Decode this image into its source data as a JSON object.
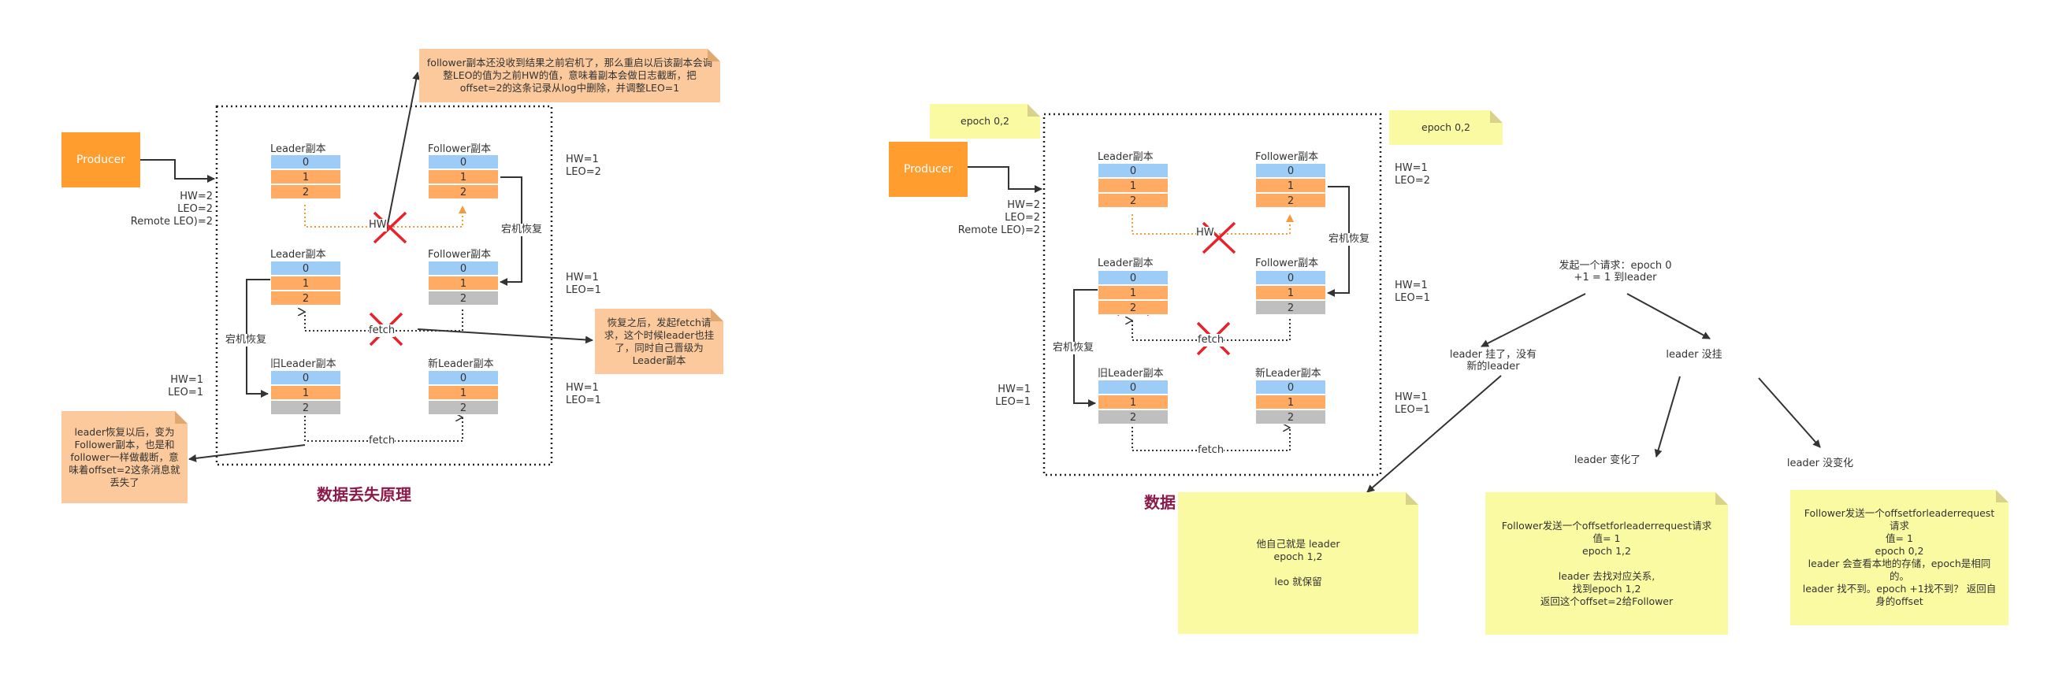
{
  "producer_label": "Producer",
  "left": {
    "producer_stats": [
      "HW=2",
      "LEO=2",
      "Remote LEO)=2"
    ],
    "rows": [
      {
        "leader_title": "Leader副本",
        "follower_title": "Follower副本",
        "hw": "HW=1",
        "leo": "LEO=2"
      },
      {
        "leader_title": "Leader副本",
        "follower_title": "Follower副本",
        "hw": "HW=1",
        "leo": "LEO=1"
      },
      {
        "leader_title": "旧Leader副本",
        "follower_title": "新Leader副本",
        "hw": "HW=1",
        "leo": "LEO=1"
      }
    ],
    "left_stats_hw": "HW=1",
    "left_stats_leo": "LEO=1",
    "cells": [
      "0",
      "1",
      "2"
    ],
    "hw_mark": "HW",
    "fetch_label": "fetch",
    "restart_label_a": "宕机恢复",
    "restart_label_b": "宕机恢复",
    "note_top": "follower副本还没收到结果之前宕机了，那么重启以后该副本会调整LEO的值为之前HW的值，意味着副本会做日志截断，把offset=2的这条记录从log中删除，并调整LEO=1",
    "note_right": "恢复之后，发起fetch请求，这个时候leader也挂了，同时自己晋级为Leader副本",
    "note_left": "leader恢复以后，变为Follower副本，也是和follower一样做截断，意味着offset=2这条消息就丢失了",
    "title": "数据丢失原理"
  },
  "right": {
    "epoch_left": "epoch 0,2",
    "epoch_right": "epoch 0,2",
    "producer_stats": [
      "HW=2",
      "LEO=2",
      "Remote LEO)=2"
    ],
    "rows": [
      {
        "leader_title": "Leader副本",
        "follower_title": "Follower副本",
        "hw": "HW=1",
        "leo": "LEO=2"
      },
      {
        "leader_title": "Leader副本",
        "follower_title": "Follower副本",
        "hw": "HW=1",
        "leo": "LEO=1"
      },
      {
        "leader_title": "旧Leader副本",
        "follower_title": "新Leader副本",
        "hw": "HW=1",
        "leo": "LEO=1"
      }
    ],
    "left_stats_hw": "HW=1",
    "left_stats_leo": "LEO=1",
    "hw_mark": "HW",
    "fetch_label": "fetch",
    "restart_label_a": "宕机恢复",
    "restart_label_b": "宕机恢复",
    "title_partial": "数据",
    "tree": {
      "root": "发起一个请求：epoch 0\n+1 = 1  到leader",
      "branch_dead": "leader 挂了，没有\n新的leader",
      "branch_alive": "leader 没挂",
      "branch_changed": "leader 变化了",
      "branch_unchanged": "leader 没变化",
      "note_dead": "他自己就是 leader\nepoch 1,2\n\nleo 就保留",
      "note_changed": "Follower发送一个offsetforleaderrequest请求\n值= 1\nepoch 1,2\n\nleader 去找对应关系,\n找到epoch 1,2\n返回这个offset=2给Follower",
      "note_unchanged": "Follower发送一个offsetforleaderrequest\n请求\n值= 1\nepoch 0,2\nleader 会查看本地的存储，epoch是相同\n的。\nleader 找不到。epoch +1找不到？ 返回自\n身的offset"
    }
  },
  "colors": {
    "producer": "#ff9d2e",
    "cell_blue": "#9dcdf7",
    "cell_orange": "#ffab63",
    "cell_gray": "#bfbfbf",
    "note_orange": "#fbc99b",
    "note_yellow": "#fafaa2",
    "cross": "#e8222a",
    "title": "#8b1a4a"
  }
}
